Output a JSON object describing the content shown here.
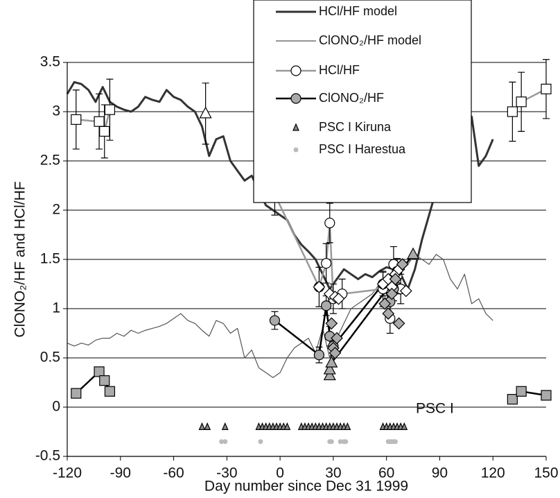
{
  "chart_data": {
    "type": "line",
    "x_label": "Day number since Dec 31 1999",
    "y_label": "ClONO₂/HF and HCl/HF",
    "annotation": "PSC I",
    "xlim": [
      -120,
      150
    ],
    "xticks": [
      -120,
      -90,
      -60,
      -30,
      0,
      30,
      60,
      90,
      120,
      150
    ],
    "ylim": [
      -0.5,
      3.5
    ],
    "yticks": [
      -0.5,
      0,
      0.5,
      1,
      1.5,
      2,
      2.5,
      3,
      3.5
    ],
    "grid": true,
    "legend": "top",
    "series": [
      {
        "name": "HCl/HF model",
        "color": "#333333",
        "line_width": 3,
        "marker": "none",
        "x": [
          -120,
          -116,
          -112,
          -108,
          -104,
          -100,
          -96,
          -92,
          -88,
          -84,
          -80,
          -76,
          -72,
          -68,
          -64,
          -60,
          -56,
          -52,
          -48,
          -44,
          -40,
          -36,
          -32,
          -28,
          -24,
          -20,
          -16,
          -12,
          -8,
          -4,
          0,
          4,
          8,
          12,
          16,
          20,
          24,
          28,
          32,
          36,
          40,
          44,
          48,
          52,
          56,
          60,
          64,
          68,
          72,
          76,
          80,
          84,
          88,
          92,
          96,
          100,
          104,
          108,
          112,
          116,
          120
        ],
        "values": [
          3.18,
          3.3,
          3.28,
          3.22,
          3.1,
          3.25,
          3.1,
          3.05,
          3.02,
          3.0,
          3.05,
          3.15,
          3.12,
          3.1,
          3.22,
          3.15,
          3.12,
          3.05,
          3.0,
          2.85,
          2.55,
          2.72,
          2.75,
          2.5,
          2.4,
          2.3,
          2.35,
          2.2,
          2.05,
          2.0,
          1.95,
          1.9,
          1.75,
          1.65,
          1.58,
          1.5,
          1.35,
          1.2,
          1.3,
          1.4,
          1.35,
          1.3,
          1.35,
          1.32,
          1.38,
          1.42,
          1.4,
          1.35,
          1.2,
          1.4,
          1.7,
          1.95,
          2.2,
          2.4,
          2.5,
          2.62,
          2.5,
          2.95,
          2.45,
          2.55,
          2.72
        ]
      },
      {
        "name": "ClONO₂/HF model",
        "color": "#555555",
        "line_width": 1.2,
        "marker": "none",
        "x": [
          -120,
          -116,
          -112,
          -108,
          -104,
          -100,
          -96,
          -92,
          -88,
          -84,
          -80,
          -76,
          -72,
          -68,
          -64,
          -60,
          -56,
          -52,
          -48,
          -44,
          -40,
          -36,
          -32,
          -28,
          -24,
          -20,
          -16,
          -12,
          -8,
          -4,
          0,
          4,
          8,
          12,
          16,
          20,
          24,
          28,
          32,
          36,
          40,
          44,
          48,
          52,
          56,
          60,
          64,
          68,
          72,
          76,
          80,
          84,
          88,
          92,
          96,
          100,
          104,
          108,
          112,
          116,
          120
        ],
        "values": [
          0.65,
          0.62,
          0.65,
          0.63,
          0.68,
          0.7,
          0.7,
          0.75,
          0.72,
          0.78,
          0.75,
          0.78,
          0.8,
          0.82,
          0.85,
          0.9,
          0.95,
          0.88,
          0.85,
          0.78,
          0.72,
          0.88,
          0.85,
          0.75,
          0.8,
          0.5,
          0.58,
          0.4,
          0.35,
          0.3,
          0.35,
          0.5,
          0.6,
          0.65,
          0.7,
          0.55,
          0.8,
          0.5,
          0.7,
          0.85,
          1.0,
          1.05,
          1.1,
          1.15,
          1.25,
          1.3,
          1.35,
          1.4,
          1.45,
          1.55,
          1.5,
          1.45,
          1.55,
          1.5,
          1.3,
          1.2,
          1.35,
          1.05,
          1.1,
          0.95,
          0.88
        ]
      },
      {
        "color": "#999999",
        "line_width": 2.5,
        "marker": "square",
        "marker_fill": "#ffffff",
        "x": [
          -115,
          -102,
          -99,
          -96
        ],
        "values": [
          2.92,
          2.9,
          2.8,
          3.02
        ],
        "errors": [
          0.3,
          0.28,
          0.27,
          0.31
        ]
      },
      {
        "color": "#999999",
        "line_width": 2.5,
        "marker": "square",
        "marker_fill": "#ffffff",
        "x": [
          131,
          136,
          150
        ],
        "values": [
          3.0,
          3.1,
          3.23
        ],
        "errors": [
          0.3,
          0.3,
          0.3
        ]
      },
      {
        "color": "#999999",
        "line_width": 0,
        "marker": "triangle",
        "marker_fill": "#ffffff",
        "x": [
          -42
        ],
        "values": [
          2.98
        ],
        "errors": [
          0.31
        ]
      },
      {
        "color": "#000000",
        "line_width": 2.5,
        "marker": "square",
        "marker_fill": "#aaaaaa",
        "x": [
          -115,
          -102,
          -99,
          -96
        ],
        "values": [
          0.14,
          0.36,
          0.27,
          0.16
        ]
      },
      {
        "color": "#000000",
        "line_width": 2.5,
        "marker": "square",
        "marker_fill": "#aaaaaa",
        "x": [
          131,
          136,
          150
        ],
        "values": [
          0.08,
          0.16,
          0.12
        ]
      },
      {
        "name": "HCl/HF",
        "color": "#999999",
        "line_width": 2.5,
        "marker": "circle",
        "marker_fill": "#ffffff",
        "x": [
          -3,
          22,
          26,
          28,
          30,
          35,
          58,
          62,
          64,
          66,
          68
        ],
        "values": [
          2.16,
          1.22,
          1.46,
          1.87,
          1.1,
          1.15,
          1.2,
          0.9,
          1.45,
          1.33,
          1.2
        ],
        "errors": [
          0.21,
          0.2,
          0.2,
          0.2,
          0.15,
          0.15,
          0.18,
          0.15,
          0.18,
          0.18,
          0.15
        ]
      },
      {
        "name": "ClONO₂/HF",
        "color": "#000000",
        "line_width": 2.5,
        "marker": "circle",
        "marker_fill": "#aaaaaa",
        "x": [
          -3,
          22,
          26,
          28,
          30,
          58,
          62,
          64,
          66
        ],
        "values": [
          0.88,
          0.53,
          1.03,
          0.72,
          0.62,
          1.25,
          1.07,
          1.2,
          1.38
        ],
        "errors": [
          0.09,
          0.08,
          0.1,
          0.1,
          0.1,
          0.12,
          0.12,
          0.12,
          0.12
        ]
      },
      {
        "color": "#000000",
        "line_width": 2.5,
        "marker": "triangle",
        "marker_fill": "#aaaaaa",
        "x": [
          28,
          28,
          29,
          75
        ],
        "values": [
          0.32,
          0.38,
          0.45,
          1.55
        ]
      },
      {
        "color": "#999999",
        "line_width": 0,
        "marker": "diamond",
        "marker_fill": "#ffffff",
        "x": [
          22,
          28,
          31,
          33,
          58,
          61,
          63,
          65,
          67,
          69,
          71
        ],
        "values": [
          1.22,
          1.15,
          1.12,
          1.1,
          1.25,
          1.3,
          1.22,
          1.35,
          1.4,
          1.45,
          1.18
        ]
      },
      {
        "color": "#000000",
        "line_width": 0,
        "marker": "diamond",
        "marker_fill": "#aaaaaa",
        "x": [
          29,
          30,
          31,
          32,
          59,
          61,
          63,
          65,
          67,
          69
        ],
        "values": [
          0.85,
          0.6,
          0.55,
          0.7,
          1.05,
          0.95,
          1.15,
          1.3,
          0.85,
          1.45
        ]
      },
      {
        "name": "PSC I Kiruna",
        "color": "#666666",
        "line_width": 0,
        "marker": "small-triangle",
        "marker_fill": "#888888",
        "x": [
          -44,
          -41,
          -31,
          -12,
          -10,
          -8,
          -6,
          -4,
          -2,
          0,
          2,
          4,
          12,
          14,
          16,
          18,
          20,
          22,
          24,
          26,
          28,
          30,
          32,
          34,
          36,
          38,
          58,
          60,
          62,
          64,
          66,
          68,
          70
        ],
        "values": [
          -0.2,
          -0.2,
          -0.2,
          -0.2,
          -0.2,
          -0.2,
          -0.2,
          -0.2,
          -0.2,
          -0.2,
          -0.2,
          -0.2,
          -0.2,
          -0.2,
          -0.2,
          -0.2,
          -0.2,
          -0.2,
          -0.2,
          -0.2,
          -0.2,
          -0.2,
          -0.2,
          -0.2,
          -0.2,
          -0.2,
          -0.2,
          -0.2,
          -0.2,
          -0.2,
          -0.2,
          -0.2,
          -0.2
        ]
      },
      {
        "name": "PSC I Harestua",
        "color": "#bbbbbb",
        "line_width": 0,
        "marker": "dot",
        "marker_fill": "#bbbbbb",
        "x": [
          -33,
          -31,
          -11,
          28,
          29,
          34,
          36,
          37,
          61,
          62,
          63,
          64,
          65
        ],
        "values": [
          -0.35,
          -0.35,
          -0.35,
          -0.35,
          -0.35,
          -0.35,
          -0.35,
          -0.35,
          -0.35,
          -0.35,
          -0.35,
          -0.35,
          -0.35
        ]
      }
    ]
  }
}
